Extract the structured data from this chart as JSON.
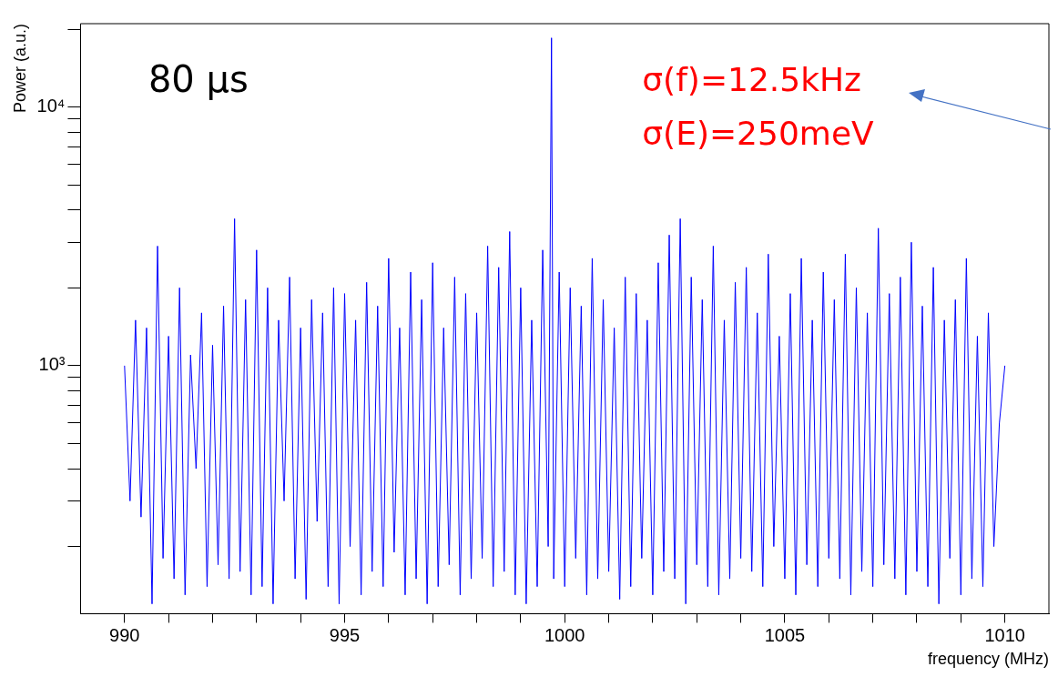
{
  "chart_data": {
    "type": "line",
    "xlabel": "frequency (MHz)",
    "ylabel": "Power (a.u.)",
    "log": "y",
    "grid": false,
    "legend": false,
    "marker": "none",
    "line_style": "solid",
    "annotations": [
      "80 μs",
      "σ(f)=12.5kHz",
      "σ(E)=250meV"
    ],
    "xlim": [
      989,
      1011
    ],
    "ylim": [
      110,
      21000
    ],
    "xticks": [
      990,
      {
        "value": 991,
        "label": null
      },
      {
        "value": 992,
        "label": null
      },
      {
        "value": 993,
        "label": null
      },
      {
        "value": 994,
        "label": null
      },
      995,
      {
        "value": 996,
        "label": null
      },
      {
        "value": 997,
        "label": null
      },
      {
        "value": 998,
        "label": null
      },
      {
        "value": 999,
        "label": null
      },
      1000,
      {
        "value": 1001,
        "label": null
      },
      {
        "value": 1002,
        "label": null
      },
      {
        "value": 1003,
        "label": null
      },
      {
        "value": 1004,
        "label": null
      },
      1005,
      {
        "value": 1006,
        "label": null
      },
      {
        "value": 1007,
        "label": null
      },
      {
        "value": 1008,
        "label": null
      },
      {
        "value": 1009,
        "label": null
      },
      1010
    ],
    "yticks": [
      {
        "value": 200,
        "label": null
      },
      {
        "value": 300,
        "label": null
      },
      {
        "value": 400,
        "label": null
      },
      {
        "value": 500,
        "label": null
      },
      {
        "value": 600,
        "label": null
      },
      {
        "value": 700,
        "label": null
      },
      {
        "value": 800,
        "label": null
      },
      {
        "value": 900,
        "label": null
      },
      {
        "value": 1000,
        "label": "10³"
      },
      {
        "value": 2000,
        "label": null
      },
      {
        "value": 3000,
        "label": null
      },
      {
        "value": 4000,
        "label": null
      },
      {
        "value": 5000,
        "label": null
      },
      {
        "value": 6000,
        "label": null
      },
      {
        "value": 7000,
        "label": null
      },
      {
        "value": 8000,
        "label": null
      },
      {
        "value": 9000,
        "label": null
      },
      {
        "value": 10000,
        "label": "10⁴"
      },
      {
        "value": 20000,
        "label": null
      }
    ],
    "series": [
      {
        "color": "#0000ff",
        "x": [
          990,
          990.125,
          990.25,
          990.375,
          990.5,
          990.625,
          990.75,
          990.875,
          991,
          991.125,
          991.25,
          991.375,
          991.5,
          991.625,
          991.75,
          991.875,
          992,
          992.125,
          992.25,
          992.375,
          992.5,
          992.625,
          992.75,
          992.875,
          993,
          993.125,
          993.25,
          993.375,
          993.5,
          993.625,
          993.75,
          993.875,
          994,
          994.125,
          994.25,
          994.375,
          994.5,
          994.625,
          994.75,
          994.875,
          995,
          995.125,
          995.25,
          995.375,
          995.5,
          995.625,
          995.75,
          995.875,
          996,
          996.125,
          996.25,
          996.375,
          996.5,
          996.625,
          996.75,
          996.875,
          997,
          997.125,
          997.25,
          997.375,
          997.5,
          997.625,
          997.75,
          997.875,
          998,
          998.125,
          998.25,
          998.375,
          998.5,
          998.625,
          998.75,
          998.875,
          999,
          999.125,
          999.25,
          999.375,
          999.5,
          999.625,
          999.7,
          999.75,
          999.875,
          1000,
          1000.125,
          1000.25,
          1000.375,
          1000.5,
          1000.625,
          1000.75,
          1000.875,
          1001,
          1001.125,
          1001.25,
          1001.375,
          1001.5,
          1001.625,
          1001.75,
          1001.875,
          1002,
          1002.125,
          1002.25,
          1002.375,
          1002.5,
          1002.625,
          1002.75,
          1002.875,
          1003,
          1003.125,
          1003.25,
          1003.375,
          1003.5,
          1003.625,
          1003.75,
          1003.875,
          1004,
          1004.125,
          1004.25,
          1004.375,
          1004.5,
          1004.625,
          1004.75,
          1004.875,
          1005,
          1005.125,
          1005.25,
          1005.375,
          1005.5,
          1005.625,
          1005.75,
          1005.875,
          1006,
          1006.125,
          1006.25,
          1006.375,
          1006.5,
          1006.625,
          1006.75,
          1006.875,
          1007,
          1007.125,
          1007.25,
          1007.375,
          1007.5,
          1007.625,
          1007.75,
          1007.875,
          1008,
          1008.125,
          1008.25,
          1008.375,
          1008.5,
          1008.625,
          1008.75,
          1008.875,
          1009,
          1009.125,
          1009.25,
          1009.375,
          1009.5,
          1009.625,
          1009.75,
          1009.875,
          1010
        ],
        "values": [
          1000,
          300,
          1500,
          260,
          1400,
          120,
          2900,
          180,
          1300,
          150,
          2000,
          130,
          1100,
          400,
          1600,
          140,
          1200,
          170,
          1700,
          150,
          3700,
          160,
          1800,
          130,
          2800,
          140,
          2000,
          120,
          1500,
          300,
          2200,
          150,
          1400,
          125,
          1800,
          250,
          1600,
          140,
          2000,
          120,
          1900,
          200,
          1500,
          130,
          2100,
          160,
          1700,
          140,
          2600,
          190,
          1400,
          130,
          2300,
          150,
          1800,
          120,
          2500,
          140,
          1400,
          170,
          2200,
          130,
          1900,
          150,
          1600,
          180,
          2900,
          140,
          2400,
          160,
          3300,
          130,
          2000,
          120,
          1500,
          140,
          2800,
          200,
          18500,
          150,
          2300,
          140,
          2000,
          180,
          1700,
          130,
          2600,
          150,
          1800,
          160,
          1400,
          125,
          2200,
          140,
          1900,
          180,
          1500,
          130,
          2500,
          160,
          3200,
          150,
          3700,
          120,
          2200,
          170,
          1800,
          140,
          2900,
          130,
          1500,
          150,
          2100,
          180,
          2400,
          160,
          1600,
          140,
          2700,
          200,
          1300,
          150,
          1900,
          130,
          2600,
          170,
          1500,
          140,
          2300,
          180,
          1800,
          150,
          2700,
          130,
          2000,
          160,
          1600,
          140,
          3400,
          170,
          1900,
          150,
          2200,
          130,
          3000,
          160,
          1700,
          140,
          2400,
          120,
          1500,
          180,
          1800,
          130,
          2600,
          150,
          1300,
          140,
          1600,
          200,
          600,
          1000
        ]
      }
    ]
  }
}
